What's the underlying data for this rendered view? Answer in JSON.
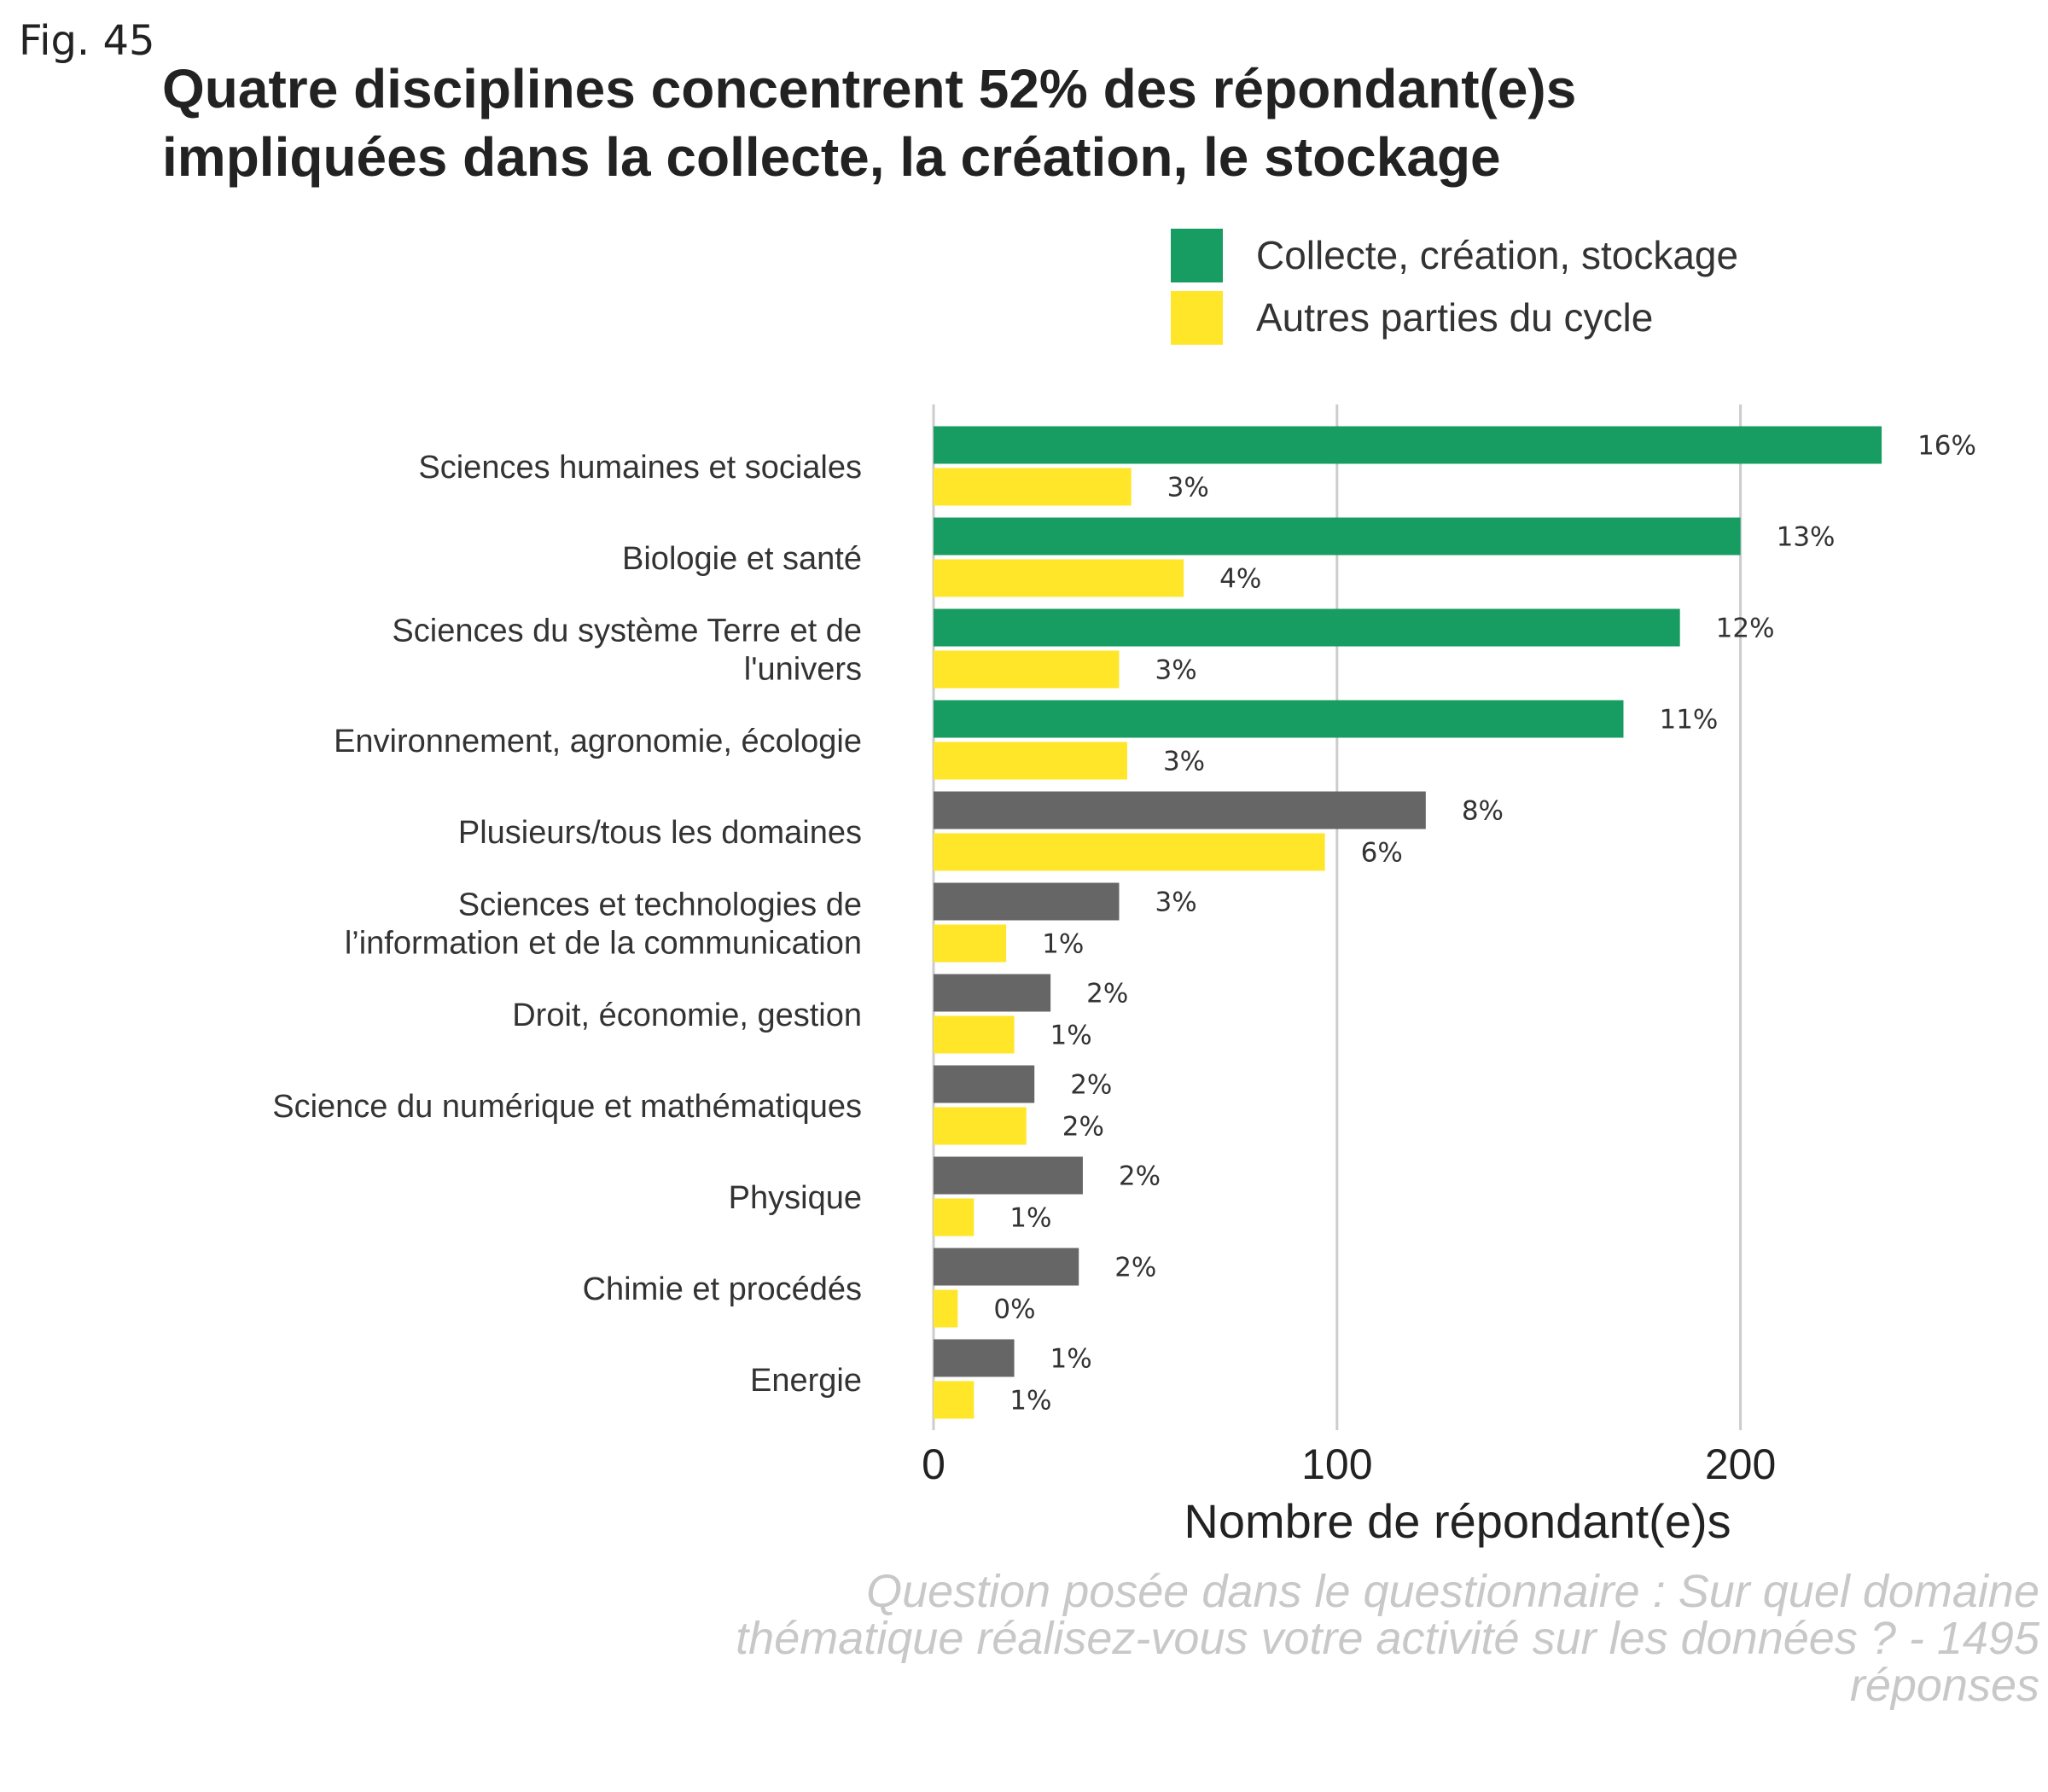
{
  "figure_label": "Fig. 45",
  "chart_data": {
    "type": "bar",
    "orientation": "horizontal",
    "title": [
      "Quatre disciplines concentrent 52% des répondant(e)s",
      "impliquées dans la collecte, la création, le stockage"
    ],
    "xlabel": "Nombre de répondant(e)s",
    "ylabel": "",
    "xlim": [
      0,
      240
    ],
    "xticks": [
      "0",
      "100",
      "200"
    ],
    "xtick_values": [
      0,
      100,
      200
    ],
    "grid": "vertical major gridlines",
    "legend_position": "top-right",
    "categories": [
      [
        "Sciences humaines et sociales"
      ],
      [
        "Biologie et santé"
      ],
      [
        "Sciences du système Terre et de",
        "l'univers"
      ],
      [
        "Environnement, agronomie, écologie"
      ],
      [
        "Plusieurs/tous les domaines"
      ],
      [
        "Sciences et technologies de",
        "l’information et de la communication"
      ],
      [
        "Droit, économie, gestion"
      ],
      [
        "Science du numérique et mathématiques"
      ],
      [
        "Physique"
      ],
      [
        "Chimie et procédés"
      ],
      [
        "Energie"
      ]
    ],
    "series": [
      {
        "name": "Collecte, création, stockage",
        "color": "#179c62",
        "other_color": "#666666",
        "highlighted_categories": 4,
        "values": [
          235,
          200,
          185,
          171,
          122,
          46,
          29,
          25,
          37,
          36,
          20
        ],
        "labels": [
          "16%",
          "13%",
          "12%",
          "11%",
          "8%",
          "3%",
          "2%",
          "2%",
          "2%",
          "2%",
          "1%"
        ]
      },
      {
        "name": "Autres parties du cycle",
        "color": "#ffe628",
        "values": [
          49,
          62,
          46,
          48,
          97,
          18,
          20,
          23,
          10,
          6,
          10
        ],
        "labels": [
          "3%",
          "4%",
          "3%",
          "3%",
          "6%",
          "1%",
          "1%",
          "2%",
          "1%",
          "0%",
          "1%"
        ]
      }
    ]
  },
  "caption": [
    "Question posée dans le questionnaire : Sur quel domaine",
    "thématique réalisez-vous votre activité sur les données ? - 1495",
    "réponses"
  ]
}
